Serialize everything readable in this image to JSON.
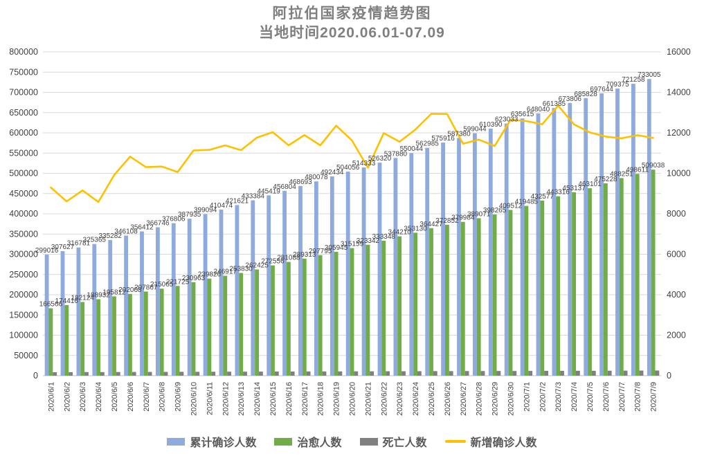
{
  "title": "阿拉伯国家疫情趋势图",
  "subtitle": "当地时间2020.06.01-07.09",
  "colors": {
    "cumulative": "#8FAADC",
    "cured": "#70AD47",
    "deaths": "#808080",
    "new_cases": "#FFC000",
    "gridline": "#D9D9D9",
    "axis_line": "#BFBFBF",
    "tick_text": "#404040",
    "data_label": "#404040",
    "title_text": "#7F7F7F"
  },
  "legend": [
    {
      "label": "累计确诊人数",
      "color": "#8FAADC",
      "swatch": "rect"
    },
    {
      "label": "治愈人数",
      "color": "#70AD47",
      "swatch": "rect"
    },
    {
      "label": "死亡人数",
      "color": "#808080",
      "swatch": "rect"
    },
    {
      "label": "新增确诊人数",
      "color": "#FFC000",
      "swatch": "line"
    }
  ],
  "chart_data": {
    "type": "bar",
    "subtype": "clustered-bar-with-line-combo",
    "title": "阿拉伯国家疫情趋势图",
    "subtitle": "当地时间2020.06.01-07.09",
    "xlabel": "",
    "ylabel_left": "",
    "ylabel_right": "",
    "grid": true,
    "legend_position": "bottom",
    "left_axis": {
      "min": 0,
      "max": 800000,
      "step": 50000
    },
    "right_axis": {
      "min": 0,
      "max": 16000,
      "step": 2000
    },
    "categories": [
      "2020/6/1",
      "2020/6/2",
      "2020/6/3",
      "2020/6/4",
      "2020/6/5",
      "2020/6/6",
      "2020/6/7",
      "2020/6/8",
      "2020/6/9",
      "2020/6/10",
      "2020/6/11",
      "2020/6/12",
      "2020/6/13",
      "2020/6/14",
      "2020/6/15",
      "2020/6/16",
      "2020/6/17",
      "2020/6/18",
      "2020/6/19",
      "2020/6/20",
      "2020/6/21",
      "2020/6/22",
      "2020/6/23",
      "2020/6/24",
      "2020/6/25",
      "2020/6/26",
      "2020/6/27",
      "2020/6/28",
      "2020/6/29",
      "2020/6/30",
      "2020/7/1",
      "2020/7/2",
      "2020/7/3",
      "2020/7/4",
      "2020/7/5",
      "2020/7/6",
      "2020/7/7",
      "2020/7/8",
      "2020/7/9"
    ],
    "series": [
      {
        "name": "累计确诊人数",
        "type": "bar",
        "axis": "left",
        "color": "#8FAADC",
        "data_labels": true,
        "values": [
          299016,
          307627,
          316781,
          325365,
          335282,
          346108,
          356412,
          366746,
          376806,
          387935,
          399094,
          410474,
          421621,
          433384,
          445419,
          456804,
          468693,
          480078,
          492434,
          504056,
          514333,
          526320,
          537880,
          550044,
          562985,
          575916,
          587380,
          599044,
          610390,
          623033,
          635615,
          648040,
          661385,
          673806,
          685828,
          697644,
          709375,
          721258,
          733005
        ]
      },
      {
        "name": "治愈人数",
        "type": "bar",
        "axis": "left",
        "color": "#70AD47",
        "data_labels": true,
        "values": [
          166566,
          174416,
          182124,
          188932,
          195812,
          202008,
          207867,
          215065,
          221725,
          230963,
          239826,
          246917,
          253830,
          262425,
          272556,
          281088,
          289313,
          297795,
          305945,
          315159,
          323342,
          333348,
          344210,
          353130,
          364427,
          372852,
          379984,
          389071,
          398265,
          409512,
          419485,
          432577,
          443316,
          453137,
          463101,
          475228,
          488251,
          498611,
          509038
        ]
      },
      {
        "name": "死亡人数",
        "type": "bar",
        "axis": "left",
        "color": "#808080",
        "data_labels": false,
        "estimated": true,
        "values": [
          8600,
          8720,
          8840,
          8960,
          9080,
          9190,
          9300,
          9410,
          9520,
          9630,
          9740,
          9850,
          9960,
          10070,
          10180,
          10290,
          10400,
          10500,
          10600,
          10700,
          10800,
          10900,
          11000,
          11100,
          11200,
          11300,
          11400,
          11500,
          11600,
          11700,
          11800,
          11900,
          12000,
          12100,
          12200,
          12350,
          12500,
          12650,
          12800
        ]
      },
      {
        "name": "新增确诊人数",
        "type": "line",
        "axis": "right",
        "color": "#FFC000",
        "data_labels": false,
        "first_point_estimated": true,
        "values": [
          9300,
          8611,
          9154,
          8584,
          9917,
          10826,
          10304,
          10334,
          10060,
          11129,
          11159,
          11380,
          11147,
          11763,
          12035,
          11385,
          11889,
          11385,
          12356,
          11622,
          10277,
          11987,
          11560,
          12164,
          12941,
          12931,
          11464,
          11664,
          11346,
          12643,
          12582,
          12425,
          13345,
          12421,
          12022,
          11816,
          11731,
          11883,
          11747
        ]
      }
    ]
  }
}
